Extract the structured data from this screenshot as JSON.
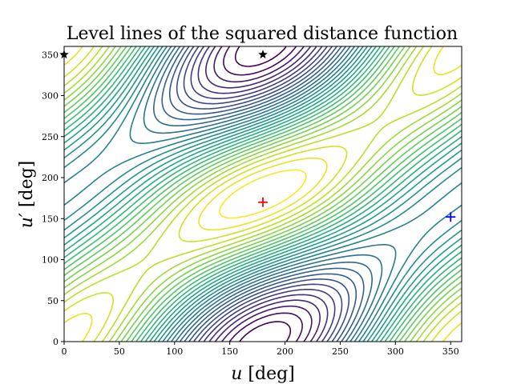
{
  "chart_data": {
    "type": "contour",
    "title": "Level lines of the squared distance function",
    "xlabel": "u [deg]",
    "ylabel": "u′ [deg]",
    "xlabel_var": "u",
    "xlabel_unit": " [deg]",
    "ylabel_var": "u′",
    "ylabel_unit": " [deg]",
    "xlim": [
      0,
      360
    ],
    "ylim": [
      0,
      360
    ],
    "xticks": [
      0,
      50,
      100,
      150,
      200,
      250,
      300,
      350
    ],
    "yticks": [
      0,
      50,
      100,
      150,
      200,
      250,
      300,
      350
    ],
    "grid": false,
    "colormap": "viridis",
    "level_count": 30,
    "minimum": {
      "u": 180,
      "u_prime": 170,
      "color": "#ff0000"
    },
    "maxima": [
      {
        "u": 0,
        "u_prime": 350
      },
      {
        "u": 180,
        "u_prime": 350
      }
    ],
    "saddle": {
      "u": 350,
      "u_prime": 152,
      "color": "#0000ff"
    }
  }
}
